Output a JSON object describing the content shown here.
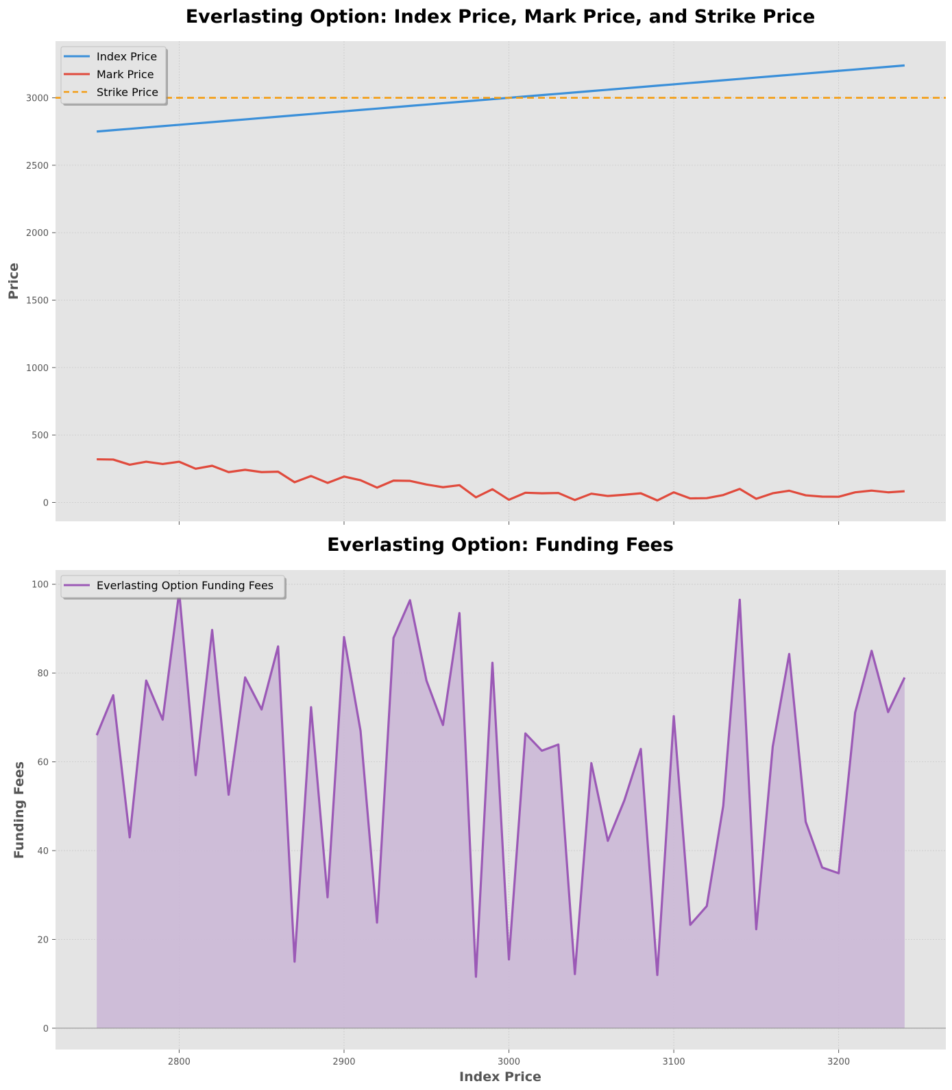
{
  "chart_data": [
    {
      "type": "line",
      "title": "Everlasting Option: Index Price, Mark Price, and Strike Price",
      "xlabel": "",
      "ylabel": "Price",
      "xlim": [
        2725,
        3265
      ],
      "ylim": [
        -140,
        3420
      ],
      "yticks": [
        0,
        500,
        1000,
        1500,
        2000,
        2500,
        3000
      ],
      "xticks": [
        2800,
        2900,
        3000,
        3100,
        3200
      ],
      "grid": true,
      "legend_position": "top-left",
      "x": [
        2750,
        2760,
        2770,
        2780,
        2790,
        2800,
        2810,
        2820,
        2830,
        2840,
        2850,
        2860,
        2870,
        2880,
        2890,
        2900,
        2910,
        2920,
        2930,
        2940,
        2950,
        2960,
        2970,
        2980,
        2990,
        3000,
        3010,
        3020,
        3030,
        3040,
        3050,
        3060,
        3070,
        3080,
        3090,
        3100,
        3110,
        3120,
        3130,
        3140,
        3150,
        3160,
        3170,
        3180,
        3190,
        3200,
        3210,
        3220,
        3230,
        3240
      ],
      "series": [
        {
          "name": "Index Price",
          "color": "#3a8fd9",
          "style": "solid",
          "values": [
            2750,
            2760,
            2770,
            2780,
            2790,
            2800,
            2810,
            2820,
            2830,
            2840,
            2850,
            2860,
            2870,
            2880,
            2890,
            2900,
            2910,
            2920,
            2930,
            2940,
            2950,
            2960,
            2970,
            2980,
            2990,
            3000,
            3010,
            3020,
            3030,
            3040,
            3050,
            3060,
            3070,
            3080,
            3090,
            3100,
            3110,
            3120,
            3130,
            3140,
            3150,
            3160,
            3170,
            3180,
            3190,
            3200,
            3210,
            3220,
            3230,
            3240
          ]
        },
        {
          "name": "Mark Price",
          "color": "#e04a3c",
          "style": "solid",
          "values": [
            320,
            318,
            280,
            302,
            285,
            302,
            250,
            272,
            225,
            242,
            225,
            228,
            150,
            196,
            145,
            192,
            165,
            110,
            162,
            160,
            133,
            113,
            128,
            38,
            98,
            20,
            72,
            68,
            70,
            18,
            65,
            48,
            57,
            68,
            15,
            75,
            30,
            32,
            55,
            100,
            27,
            68,
            87,
            53,
            43,
            42,
            75,
            88,
            75,
            83
          ]
        },
        {
          "name": "Strike Price",
          "color": "#f39c12",
          "style": "dashed",
          "values": [
            3000,
            3000,
            3000,
            3000,
            3000,
            3000,
            3000,
            3000,
            3000,
            3000,
            3000,
            3000,
            3000,
            3000,
            3000,
            3000,
            3000,
            3000,
            3000,
            3000,
            3000,
            3000,
            3000,
            3000,
            3000,
            3000,
            3000,
            3000,
            3000,
            3000,
            3000,
            3000,
            3000,
            3000,
            3000,
            3000,
            3000,
            3000,
            3000,
            3000,
            3000,
            3000,
            3000,
            3000,
            3000,
            3000,
            3000,
            3000,
            3000,
            3000
          ]
        }
      ]
    },
    {
      "type": "area",
      "title": "Everlasting Option: Funding Fees",
      "xlabel": "Index Price",
      "ylabel": "Funding Fees",
      "xlim": [
        2725,
        3265
      ],
      "ylim": [
        -4.8,
        103.2
      ],
      "yticks": [
        0,
        20,
        40,
        60,
        80,
        100
      ],
      "xticks": [
        2800,
        2900,
        3000,
        3100,
        3200
      ],
      "grid": true,
      "legend_position": "top-left",
      "x": [
        2750,
        2760,
        2770,
        2780,
        2790,
        2800,
        2810,
        2820,
        2830,
        2840,
        2850,
        2860,
        2870,
        2880,
        2890,
        2900,
        2910,
        2920,
        2930,
        2940,
        2950,
        2960,
        2970,
        2980,
        2990,
        3000,
        3010,
        3020,
        3030,
        3040,
        3050,
        3060,
        3070,
        3080,
        3090,
        3100,
        3110,
        3120,
        3130,
        3140,
        3150,
        3160,
        3170,
        3180,
        3190,
        3200,
        3210,
        3220,
        3230,
        3240
      ],
      "series": [
        {
          "name": "Everlasting Option Funding Fees",
          "color": "#9b59b6",
          "fill": "#cbb8d6",
          "values": [
            66,
            75,
            43,
            78.3,
            69.5,
            98.3,
            57,
            89.7,
            52.6,
            79,
            71.8,
            86,
            15,
            72.3,
            29.5,
            88.1,
            67,
            23.8,
            87.9,
            96.4,
            78.3,
            68.3,
            93.5,
            11.6,
            82.3,
            15.5,
            66.4,
            62.5,
            63.9,
            12.2,
            59.7,
            42.2,
            51.3,
            62.9,
            12,
            70.3,
            23.3,
            27.5,
            50.1,
            96.5,
            22.3,
            63.4,
            84.3,
            46.5,
            36.2,
            34.9,
            71.1,
            85,
            71.2,
            79
          ]
        }
      ]
    }
  ]
}
